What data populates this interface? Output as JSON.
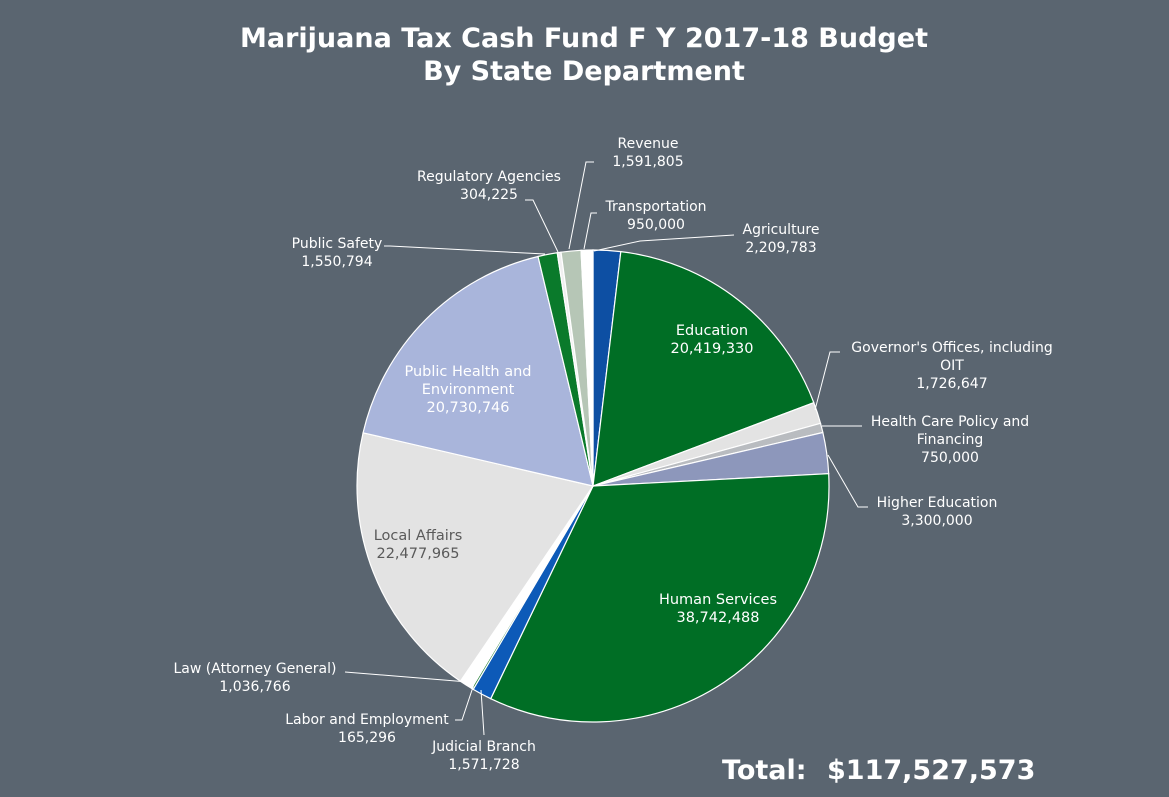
{
  "chart_data": {
    "type": "pie",
    "title_lines": [
      "Marijuana Tax Cash Fund F Y 2017-18 Budget",
      "By State Department"
    ],
    "slices": [
      {
        "label": "Agriculture",
        "label_lines": [
          "Agriculture"
        ],
        "value": 2209783,
        "value_text": "2,209,783",
        "color": "#0d4fa3"
      },
      {
        "label": "Education",
        "label_lines": [
          "Education"
        ],
        "value": 20419330,
        "value_text": "20,419,330",
        "color": "#006e25"
      },
      {
        "label": "Governor's Offices, including OIT",
        "label_lines": [
          "Governor's Offices, including",
          "OIT"
        ],
        "value": 1726647,
        "value_text": "1,726,647",
        "color": "#e3e3e3"
      },
      {
        "label": "Health Care Policy and Financing",
        "label_lines": [
          "Health Care Policy and",
          "Financing"
        ],
        "value": 750000,
        "value_text": "750,000",
        "color": "#b9bcc0"
      },
      {
        "label": "Higher Education",
        "label_lines": [
          "Higher Education"
        ],
        "value": 3300000,
        "value_text": "3,300,000",
        "color": "#8d97bb"
      },
      {
        "label": "Human Services",
        "label_lines": [
          "Human Services"
        ],
        "value": 38742488,
        "value_text": "38,742,488",
        "color": "#006e25"
      },
      {
        "label": "Judicial Branch",
        "label_lines": [
          "Judicial Branch"
        ],
        "value": 1571728,
        "value_text": "1,571,728",
        "color": "#0d5ab8"
      },
      {
        "label": "Labor and Employment",
        "label_lines": [
          "Labor and Employment"
        ],
        "value": 165296,
        "value_text": "165,296",
        "color": "#1c7d2e"
      },
      {
        "label": "Law (Attorney General)",
        "label_lines": [
          "Law (Attorney General)"
        ],
        "value": 1036766,
        "value_text": "1,036,766",
        "color": "#ffffff"
      },
      {
        "label": "Local Affairs",
        "label_lines": [
          "Local Affairs"
        ],
        "value": 22477965,
        "value_text": "22,477,965",
        "color": "#e3e3e3"
      },
      {
        "label": "Public Health and Environment",
        "label_lines": [
          "Public Health and",
          "Environment"
        ],
        "value": 20730746,
        "value_text": "20,730,746",
        "color": "#a9b5db"
      },
      {
        "label": "Public Safety",
        "label_lines": [
          "Public Safety"
        ],
        "value": 1550794,
        "value_text": "1,550,794",
        "color": "#0a7a2b"
      },
      {
        "label": "Regulatory Agencies",
        "label_lines": [
          "Regulatory Agencies"
        ],
        "value": 304225,
        "value_text": "304,225",
        "color": "#f0f0f0"
      },
      {
        "label": "Revenue",
        "label_lines": [
          "Revenue"
        ],
        "value": 1591805,
        "value_text": "1,591,805",
        "color": "#b6c6b6"
      },
      {
        "label": "Transportation",
        "label_lines": [
          "Transportation"
        ],
        "value": 950000,
        "value_text": "950,000",
        "color": "#ffffff"
      }
    ],
    "total_label": "Total:",
    "total_value": "$117,527,573"
  }
}
